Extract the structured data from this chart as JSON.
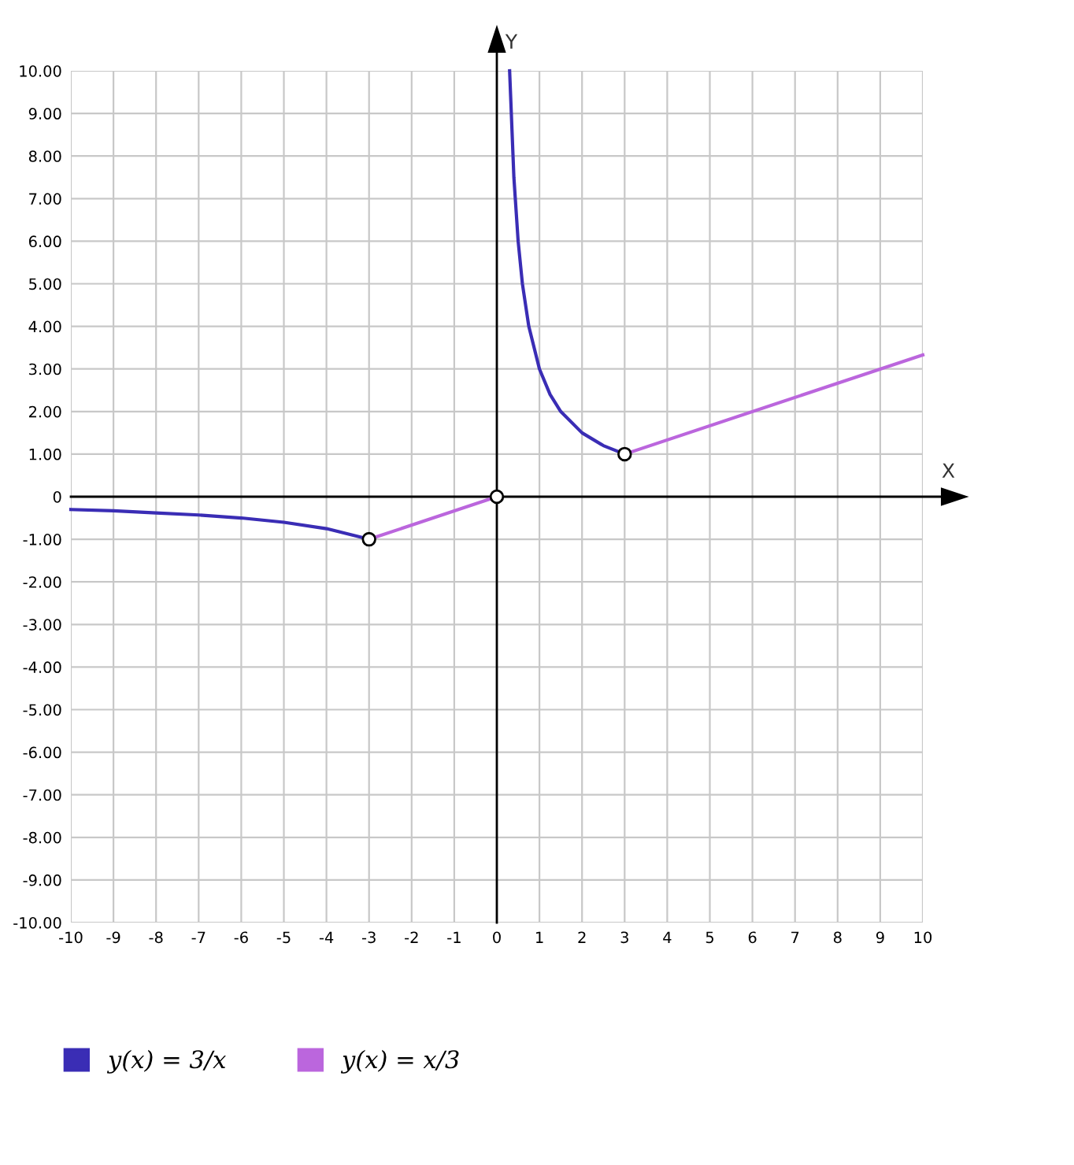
{
  "chart_data": {
    "type": "line",
    "xlabel": "X",
    "ylabel": "Y",
    "xlim": [
      -10,
      10
    ],
    "ylim": [
      -10,
      10
    ],
    "xticks": [
      -10,
      -9,
      -8,
      -7,
      -6,
      -5,
      -4,
      -3,
      -2,
      -1,
      0,
      1,
      2,
      3,
      4,
      5,
      6,
      7,
      8,
      9,
      10
    ],
    "yticks": [
      {
        "value": -10,
        "label": "-10.00"
      },
      {
        "value": -9,
        "label": "-9.00"
      },
      {
        "value": -8,
        "label": "-8.00"
      },
      {
        "value": -7,
        "label": "-7.00"
      },
      {
        "value": -6,
        "label": "-6.00"
      },
      {
        "value": -5,
        "label": "-5.00"
      },
      {
        "value": -4,
        "label": "-4.00"
      },
      {
        "value": -3,
        "label": "-3.00"
      },
      {
        "value": -2,
        "label": "-2.00"
      },
      {
        "value": -1,
        "label": "-1.00"
      },
      {
        "value": 0,
        "label": "0"
      },
      {
        "value": 1,
        "label": "1.00"
      },
      {
        "value": 2,
        "label": "2.00"
      },
      {
        "value": 3,
        "label": "3.00"
      },
      {
        "value": 4,
        "label": "4.00"
      },
      {
        "value": 5,
        "label": "5.00"
      },
      {
        "value": 6,
        "label": "6.00"
      },
      {
        "value": 7,
        "label": "7.00"
      },
      {
        "value": 8,
        "label": "8.00"
      },
      {
        "value": 9,
        "label": "9.00"
      },
      {
        "value": 10,
        "label": "10.00"
      }
    ],
    "grid": true,
    "legend": "bottom",
    "series": [
      {
        "name": "y(x) = 3/x",
        "color": "#3a2db5",
        "x": [
          -10,
          -9,
          -8,
          -7,
          -6,
          -5,
          -4,
          -3,
          0,
          0.3,
          0.4,
          0.5,
          0.6,
          0.75,
          1,
          1.25,
          1.5,
          2,
          2.5,
          3
        ],
        "values": [
          -0.3,
          -0.33,
          -0.38,
          -0.43,
          -0.5,
          -0.6,
          -0.75,
          -1,
          null,
          10,
          7.5,
          6,
          5,
          4,
          3,
          2.4,
          2,
          1.5,
          1.2,
          1
        ]
      },
      {
        "name": "y(x) = x/3",
        "color": "#bb66dd",
        "x": [
          -3,
          0,
          1,
          3,
          10
        ],
        "values": [
          -1,
          0,
          null,
          1,
          3.33
        ]
      },
      {
        "type": "scatter",
        "color": "#000000",
        "marker": "circle",
        "x": [
          -3,
          0,
          3
        ],
        "values": [
          -1,
          0,
          1
        ]
      }
    ]
  }
}
